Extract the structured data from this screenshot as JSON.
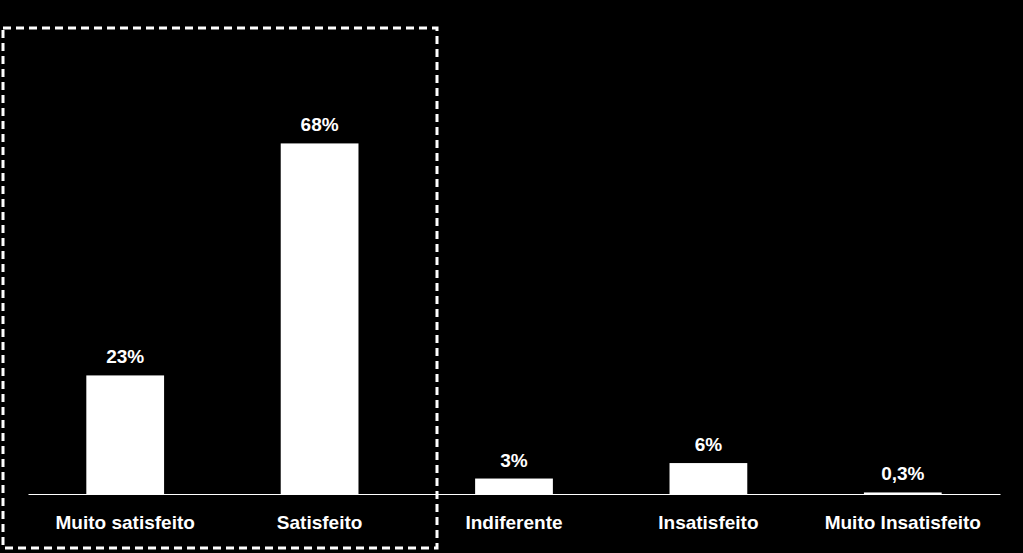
{
  "chart_data": {
    "type": "bar",
    "categories": [
      "Muito satisfeito",
      "Satisfeito",
      "Indiferente",
      "Insatisfeito",
      "Muito Insatisfeito"
    ],
    "values": [
      23,
      68,
      3,
      6,
      0.3
    ],
    "value_labels": [
      "23%",
      "68%",
      "3%",
      "6%",
      "0,3%"
    ],
    "color": "#ffffff",
    "ylim": [
      0,
      90
    ],
    "grid": false,
    "data_labels": true,
    "tick_labels": "x"
  }
}
